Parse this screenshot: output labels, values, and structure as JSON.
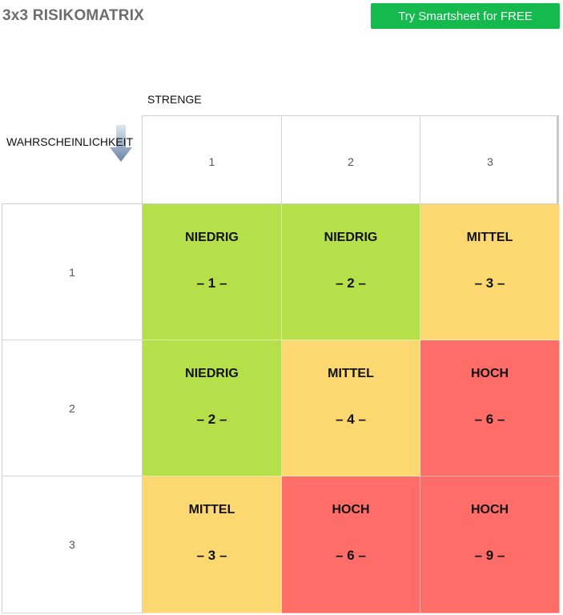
{
  "header": {
    "title": "3x3 RISIKOMATRIX",
    "cta_label": "Try Smartsheet for FREE"
  },
  "axes": {
    "severity_label": "STRENGE",
    "likelihood_label": "WAHRSCHEINLICHKEIT",
    "arrow_icon": "down-arrow-icon"
  },
  "columns": [
    "1",
    "2",
    "3"
  ],
  "rows": [
    {
      "label": "1",
      "cells": [
        {
          "level": "NIEDRIG",
          "score": "– 1 –",
          "color": "#b6e04a"
        },
        {
          "level": "NIEDRIG",
          "score": "– 2 –",
          "color": "#b6e04a"
        },
        {
          "level": "MITTEL",
          "score": "– 3 –",
          "color": "#fdd870"
        }
      ]
    },
    {
      "label": "2",
      "cells": [
        {
          "level": "NIEDRIG",
          "score": "– 2 –",
          "color": "#b6e04a"
        },
        {
          "level": "MITTEL",
          "score": "– 4 –",
          "color": "#fdd870"
        },
        {
          "level": "HOCH",
          "score": "– 6 –",
          "color": "#fe6d67"
        }
      ]
    },
    {
      "label": "3",
      "cells": [
        {
          "level": "MITTEL",
          "score": "– 3 –",
          "color": "#fdd870"
        },
        {
          "level": "HOCH",
          "score": "– 6 –",
          "color": "#fe6d67"
        },
        {
          "level": "HOCH",
          "score": "– 9 –",
          "color": "#fe6d67"
        }
      ]
    }
  ],
  "colors": {
    "low": "#b6e04a",
    "medium": "#fdd870",
    "high": "#fe6d67",
    "cta": "#14ba4d"
  }
}
